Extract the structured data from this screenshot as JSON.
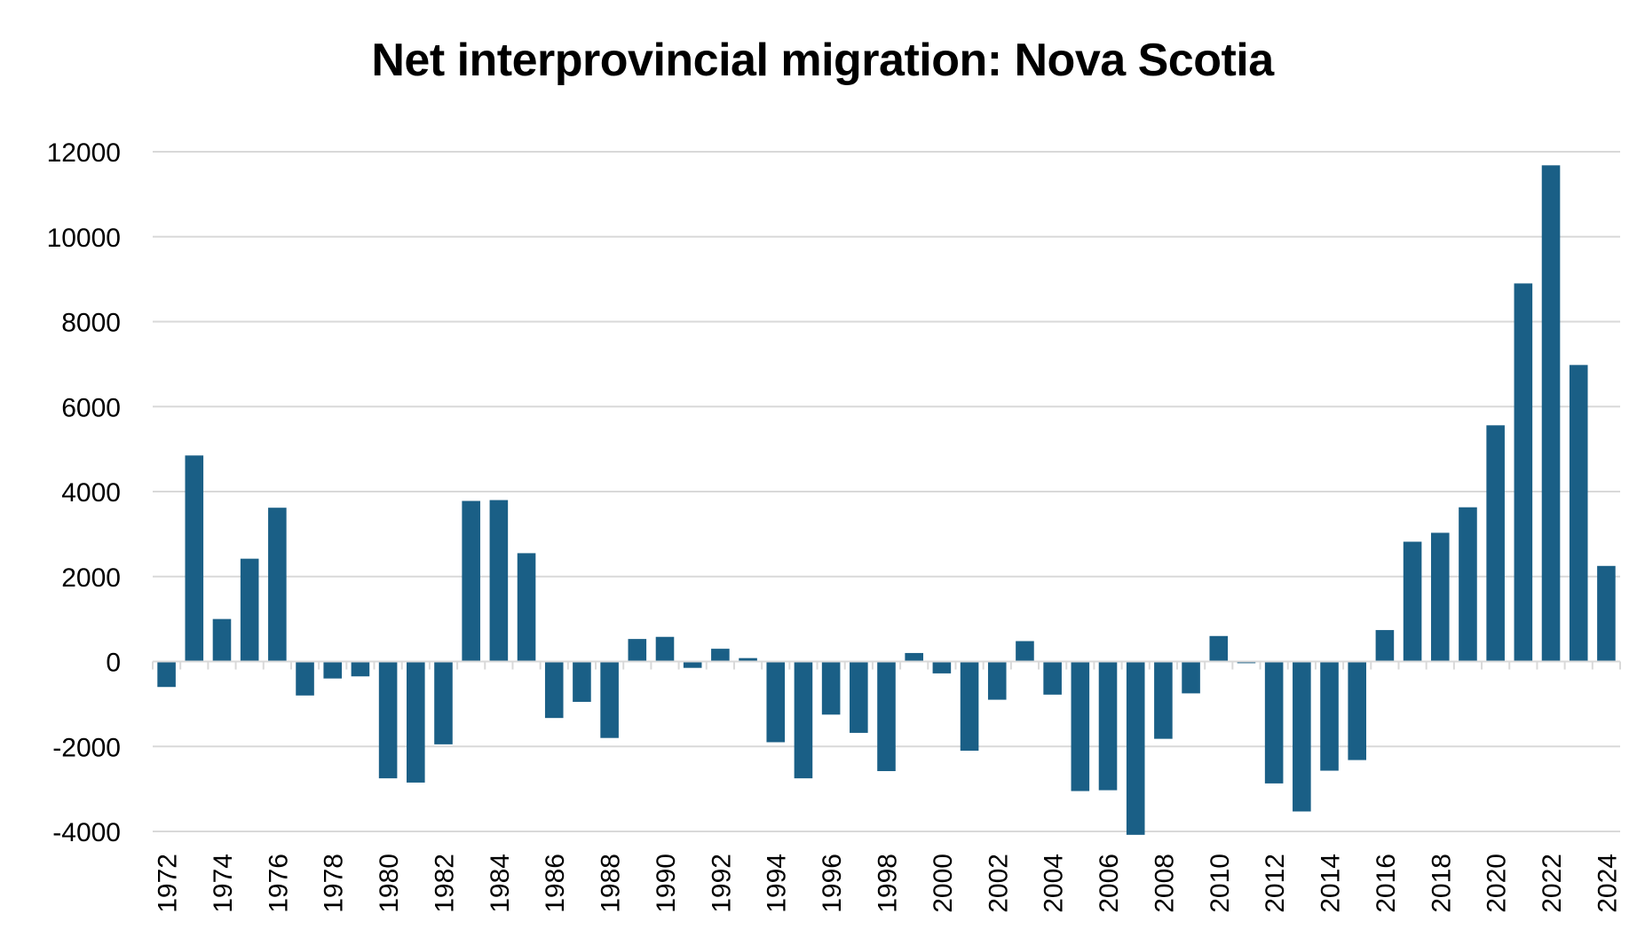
{
  "chart_data": {
    "type": "bar",
    "title": "Net interprovincial migration: Nova Scotia",
    "xlabel": "",
    "ylabel": "",
    "ylim": [
      -4000,
      12000
    ],
    "yticks": [
      -4000,
      -2000,
      0,
      2000,
      4000,
      6000,
      8000,
      10000,
      12000
    ],
    "grid": true,
    "legend": "none",
    "bar_color": "#1a5f86",
    "grid_color": "#d9d9d9",
    "categories": [
      "1972",
      "1973",
      "1974",
      "1975",
      "1976",
      "1977",
      "1978",
      "1979",
      "1980",
      "1981",
      "1982",
      "1983",
      "1984",
      "1985",
      "1986",
      "1987",
      "1988",
      "1989",
      "1990",
      "1991",
      "1992",
      "1993",
      "1994",
      "1995",
      "1996",
      "1997",
      "1998",
      "1999",
      "2000",
      "2001",
      "2002",
      "2003",
      "2004",
      "2005",
      "2006",
      "2007",
      "2008",
      "2009",
      "2010",
      "2011",
      "2012",
      "2013",
      "2014",
      "2015",
      "2016",
      "2017",
      "2018",
      "2019",
      "2020",
      "2021",
      "2022",
      "2023",
      "2024"
    ],
    "tick_labels": [
      "1972",
      "1974",
      "1976",
      "1978",
      "1980",
      "1982",
      "1984",
      "1986",
      "1988",
      "1990",
      "1992",
      "1994",
      "1996",
      "1998",
      "2000",
      "2002",
      "2004",
      "2006",
      "2008",
      "2010",
      "2012",
      "2014",
      "2016",
      "2018",
      "2020",
      "2022",
      "2024"
    ],
    "values": [
      -600,
      4850,
      1000,
      2420,
      3620,
      -800,
      -400,
      -350,
      -2750,
      -2850,
      -1950,
      3780,
      3800,
      2550,
      -1330,
      -950,
      -1800,
      530,
      580,
      -150,
      300,
      80,
      -1900,
      -2750,
      -1250,
      -1680,
      -2580,
      200,
      -280,
      -2100,
      -900,
      480,
      -780,
      -3050,
      -3030,
      -4080,
      -1820,
      -750,
      600,
      -40,
      -2870,
      -3530,
      -2570,
      -2320,
      740,
      2820,
      3030,
      3630,
      5560,
      8900,
      11680,
      6980,
      2250
    ]
  }
}
